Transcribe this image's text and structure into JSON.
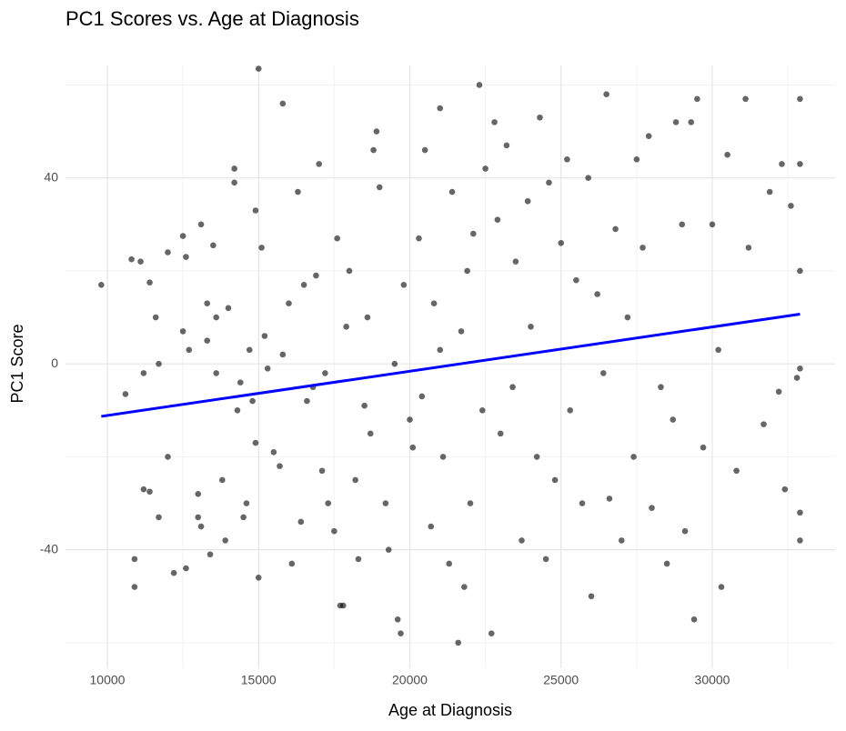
{
  "chart_data": {
    "type": "scatter",
    "title": "PC1 Scores vs. Age at Diagnosis",
    "x_label": "Age at Diagnosis",
    "y_label": "PC1 Score",
    "xlim": [
      8617,
      34060
    ],
    "ylim": [
      -65.5,
      64.2
    ],
    "xticks": [
      10000,
      15000,
      20000,
      25000,
      30000
    ],
    "yticks": [
      -40,
      0,
      40
    ],
    "x_minor_ticks": [
      12500,
      17500,
      22500,
      27500,
      32500
    ],
    "y_minor_ticks": [
      -60,
      -20,
      20,
      60
    ],
    "grid": true,
    "point_color": "#000000",
    "point_opacity": 0.6,
    "x": [
      9800,
      10600,
      10800,
      10900,
      10900,
      11100,
      11200,
      11400,
      11200,
      11400,
      11600,
      11700,
      11700,
      12000,
      12000,
      12200,
      12500,
      12500,
      12600,
      12600,
      12700,
      13000,
      13000,
      13100,
      13100,
      13300,
      13300,
      13400,
      13500,
      13600,
      13600,
      13800,
      13900,
      14000,
      14200,
      14200,
      14300,
      14400,
      14500,
      14600,
      14700,
      14800,
      14900,
      14900,
      15000,
      15000,
      15100,
      15200,
      15300,
      15500,
      15700,
      15800,
      15800,
      16000,
      16100,
      16300,
      16400,
      16500,
      16600,
      16800,
      16900,
      17000,
      17100,
      17200,
      17300,
      17500,
      17600,
      17700,
      17800,
      17900,
      18000,
      18200,
      18300,
      18500,
      18600,
      18700,
      18800,
      18900,
      19000,
      19200,
      19300,
      19500,
      19600,
      19700,
      19800,
      20000,
      20100,
      20300,
      20400,
      20500,
      20700,
      20800,
      21000,
      21000,
      21100,
      21300,
      21400,
      21600,
      21700,
      21800,
      21900,
      22000,
      22100,
      22300,
      22400,
      22500,
      22700,
      22800,
      22900,
      23000,
      23200,
      23400,
      23500,
      23700,
      23900,
      24000,
      24200,
      24300,
      24500,
      24600,
      24800,
      25000,
      25200,
      25300,
      25500,
      25700,
      25900,
      26000,
      26200,
      26400,
      26500,
      26600,
      26800,
      27000,
      27200,
      27400,
      27500,
      27700,
      27900,
      28000,
      28300,
      28500,
      28700,
      28800,
      29000,
      29100,
      29300,
      29400,
      29500,
      29700,
      30000,
      30200,
      30300,
      30500,
      30800,
      31100,
      31200,
      31700,
      31900,
      32200,
      32300,
      32400,
      32600,
      32800,
      32900,
      32900,
      32900,
      32900,
      32900,
      32900
    ],
    "values": [
      17,
      -6.5,
      22.5,
      -42,
      -48,
      22,
      -2,
      17.5,
      -27,
      -27.5,
      10,
      0,
      -33,
      24,
      -20,
      -45,
      27.5,
      7,
      23,
      -44,
      3,
      -28,
      -33,
      30,
      -35,
      5,
      13,
      -41,
      25.5,
      -2,
      10,
      -25,
      -38,
      12,
      42,
      39,
      -10,
      -4,
      -33,
      -30,
      3,
      -8,
      33,
      -17,
      63.5,
      -46,
      25,
      6,
      -1,
      -19,
      -22,
      56,
      2,
      13,
      -43,
      37,
      -34,
      17,
      -8,
      -5,
      19,
      43,
      -23,
      -2,
      -30,
      -36,
      27,
      -52,
      -52,
      8,
      20,
      -25,
      -42,
      -9,
      10,
      -15,
      46,
      50,
      38,
      -30,
      -40,
      0,
      -55,
      -58,
      17,
      -12,
      -18,
      27,
      -7,
      46,
      -35,
      13,
      55,
      3,
      -20,
      -43,
      37,
      -60,
      7,
      -48,
      20,
      -30,
      28,
      60,
      -10,
      42,
      -58,
      52,
      31,
      -15,
      47,
      -5,
      22,
      -38,
      35,
      8,
      -20,
      53,
      -42,
      39,
      -25,
      26,
      44,
      -10,
      18,
      -30,
      40,
      -50,
      15,
      -2,
      58,
      -29,
      29,
      -38,
      10,
      -20,
      44,
      25,
      49,
      -31,
      -5,
      -43,
      -12,
      52,
      30,
      -36,
      52,
      -55,
      57,
      -18,
      30,
      3,
      -48,
      45,
      -23,
      57,
      25,
      -13,
      37,
      -6,
      43,
      -27,
      34,
      -3,
      57,
      43,
      20,
      -38,
      -32,
      -1
    ],
    "trend_line": {
      "x": [
        9800,
        32900
      ],
      "values": [
        -11.3,
        10.7
      ],
      "color": "#0000ff"
    }
  }
}
